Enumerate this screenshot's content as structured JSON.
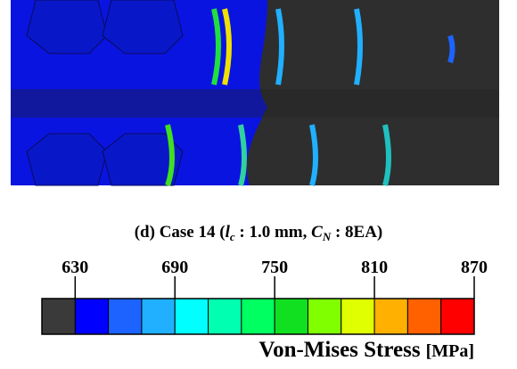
{
  "caption": {
    "parts": [
      "(d) Case 14 (",
      "l",
      "c",
      " : 1.0 mm, ",
      "C",
      "N",
      " : 8EA)"
    ]
  },
  "colorbar": {
    "lim": [
      610,
      870
    ],
    "ticks": [
      630,
      690,
      750,
      810,
      870
    ],
    "colors": [
      "#3a3a3a",
      "#0000ff",
      "#1d63ff",
      "#20b0ff",
      "#00ffff",
      "#00ffb0",
      "#00ff60",
      "#10e020",
      "#80ff00",
      "#e0ff00",
      "#ffb000",
      "#ff6000",
      "#ff0000"
    ],
    "label": "Von-Mises Stress",
    "unit": "[MPa]"
  }
}
